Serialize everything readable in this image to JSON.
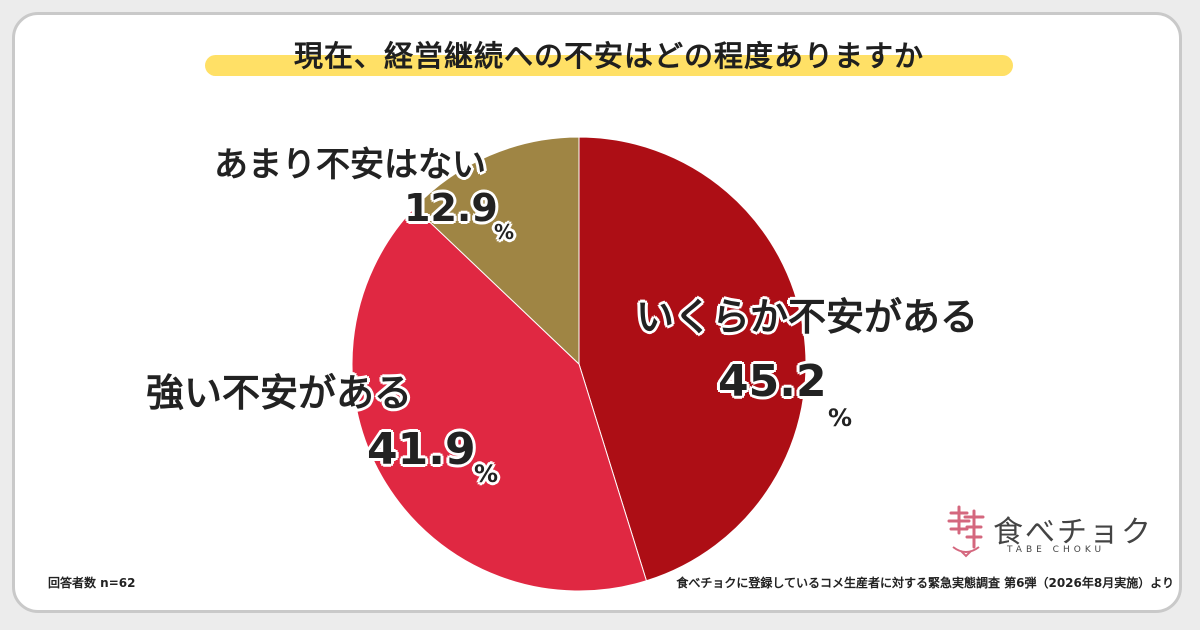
{
  "chart_data": {
    "type": "pie",
    "title": "現在、経営継続への不安はどの程度ありますか",
    "slices": [
      {
        "label": "いくらか不安がある",
        "value": 45.2,
        "unit": "%",
        "color": "#ad0e15"
      },
      {
        "label": "強い不安がある",
        "value": 41.9,
        "unit": "%",
        "color": "#e02842"
      },
      {
        "label": "あまり不安はない",
        "value": 12.9,
        "unit": "%",
        "color": "#9f8544"
      }
    ],
    "start": "12 o'clock",
    "direction": "clockwise"
  },
  "footer": {
    "sample": "回答者数 n=62",
    "source": "食べチョクに登録しているコメ生産者に対する緊急実態調査 第6弾（2026年8月実施）より"
  },
  "logo": {
    "name": "食べチョク",
    "sub": "TABE CHOKU"
  }
}
